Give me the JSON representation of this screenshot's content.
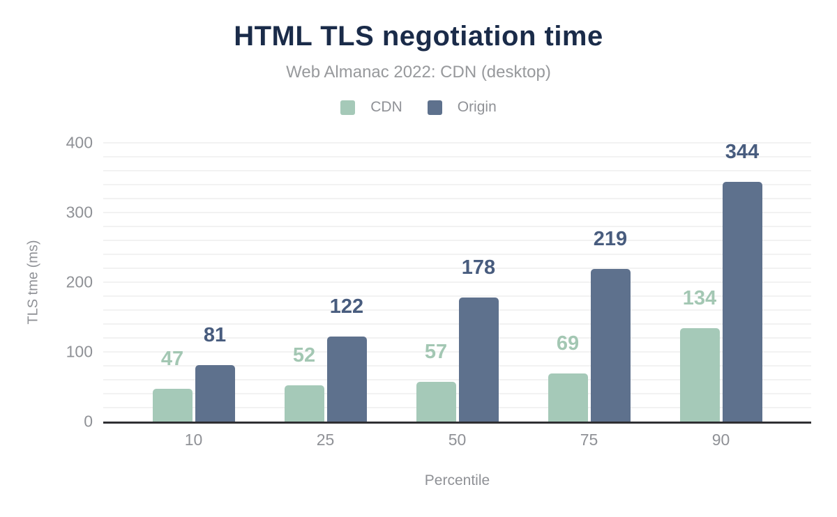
{
  "chart_data": {
    "type": "bar",
    "title": "HTML TLS negotiation time",
    "subtitle": "Web Almanac 2022: CDN (desktop)",
    "xlabel": "Percentile",
    "ylabel": "TLS tme (ms)",
    "categories": [
      "10",
      "25",
      "50",
      "75",
      "90"
    ],
    "series": [
      {
        "name": "CDN",
        "color": "#a5c9b8",
        "label_color": "#a3c7b3",
        "values": [
          47,
          52,
          57,
          69,
          134
        ]
      },
      {
        "name": "Origin",
        "color": "#5e718d",
        "label_color": "#485c7e",
        "values": [
          81,
          122,
          178,
          219,
          344
        ]
      }
    ],
    "ylim": [
      0,
      400
    ],
    "yticks": [
      0,
      100,
      200,
      300,
      400
    ],
    "grid_step": 20,
    "grid": "on",
    "legend_position": "top"
  },
  "colors": {
    "title": "#1a2b49",
    "subtitle": "#97999c",
    "axis_text": "#8f9196",
    "axis_line": "#2f2f33",
    "gridline": "#f2f2f2",
    "background": "#ffffff"
  }
}
